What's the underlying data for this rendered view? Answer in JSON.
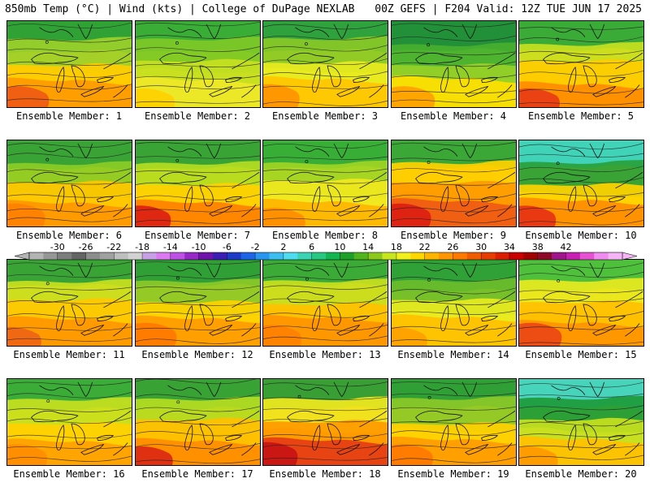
{
  "header": {
    "left": "850mb Temp (°C) | Wind (kts) | College of DuPage NEXLAB",
    "right": "00Z GEFS | F204 Valid: 12Z TUE JUN 17 2025"
  },
  "label_prefix": "Ensemble Member: ",
  "colorbar": {
    "ticks": [
      "-30",
      "-26",
      "-22",
      "-18",
      "-14",
      "-10",
      "-6",
      "-2",
      "2",
      "6",
      "10",
      "14",
      "18",
      "22",
      "26",
      "30",
      "34",
      "38",
      "42"
    ],
    "colors": [
      "#b4b4b4",
      "#969696",
      "#7d7d7d",
      "#646464",
      "#8c8c8c",
      "#a0a0a0",
      "#bebebe",
      "#d2d2d2",
      "#c8a0e6",
      "#dc78f0",
      "#be50e6",
      "#9628c8",
      "#6e14aa",
      "#3c1eb4",
      "#1e3cc8",
      "#1e64e6",
      "#2896f0",
      "#3cbef0",
      "#50dcf0",
      "#3cd2b4",
      "#28c882",
      "#14b450",
      "#1ea028",
      "#50b41e",
      "#8cc81e",
      "#c8e61e",
      "#f0f01e",
      "#ffd700",
      "#ffb400",
      "#ff9600",
      "#ff7800",
      "#f05a00",
      "#e63c00",
      "#dc1e00",
      "#c80000",
      "#a00000",
      "#8c0a28",
      "#a0148c",
      "#c81eb4",
      "#e650d2",
      "#f08cf0",
      "#f5b4f5"
    ]
  },
  "members": [
    {
      "number": "1",
      "palette": [
        "#1e9e3a",
        "#9cd02a",
        "#ffcc00",
        "#ff9a00",
        "#f05a14"
      ]
    },
    {
      "number": "2",
      "palette": [
        "#2ea83a",
        "#7ec826",
        "#c8e020",
        "#f0e828",
        "#ffd000"
      ]
    },
    {
      "number": "3",
      "palette": [
        "#1e9a40",
        "#8ac826",
        "#e8ea20",
        "#ffc400",
        "#ff9200"
      ]
    },
    {
      "number": "4",
      "palette": [
        "#188a3a",
        "#48b030",
        "#98d028",
        "#ffe000",
        "#ffa000"
      ]
    },
    {
      "number": "5",
      "palette": [
        "#2aa83c",
        "#c8e020",
        "#ffcc00",
        "#ff8c00",
        "#e83c14"
      ]
    },
    {
      "number": "6",
      "palette": [
        "#28a03a",
        "#8ccc26",
        "#ffc800",
        "#ff9600",
        "#ff8000"
      ]
    },
    {
      "number": "7",
      "palette": [
        "#28a03a",
        "#b4dc22",
        "#ffd000",
        "#ff8000",
        "#dc1e14"
      ]
    },
    {
      "number": "8",
      "palette": [
        "#28a83a",
        "#a0d424",
        "#f0e820",
        "#ffb400",
        "#ff8c00"
      ]
    },
    {
      "number": "9",
      "palette": [
        "#2aa83c",
        "#ffd200",
        "#ff9a00",
        "#f05a14",
        "#dc1e14"
      ]
    },
    {
      "number": "10",
      "palette": [
        "#30d2c8",
        "#28a03a",
        "#ffd200",
        "#ff8c00",
        "#e63214"
      ]
    },
    {
      "number": "11",
      "palette": [
        "#28a03a",
        "#c8e020",
        "#ffc800",
        "#ff9600",
        "#f06414"
      ]
    },
    {
      "number": "12",
      "palette": [
        "#1e9a3a",
        "#8cc828",
        "#ffd200",
        "#ff9a00",
        "#ff7800"
      ]
    },
    {
      "number": "13",
      "palette": [
        "#2aa83c",
        "#c8e020",
        "#ffc000",
        "#ff9400",
        "#ff8000"
      ]
    },
    {
      "number": "14",
      "palette": [
        "#1e9a3a",
        "#6cbc2a",
        "#e8ea20",
        "#ffc000",
        "#ffa000"
      ]
    },
    {
      "number": "15",
      "palette": [
        "#40c040",
        "#e8ea20",
        "#ffc000",
        "#ff9400",
        "#ec4614"
      ]
    },
    {
      "number": "16",
      "palette": [
        "#2aa83c",
        "#c8e020",
        "#ffd000",
        "#ffa000",
        "#ff8c00"
      ]
    },
    {
      "number": "17",
      "palette": [
        "#28a03a",
        "#b4dc22",
        "#ffc000",
        "#ff8c00",
        "#dc2814"
      ]
    },
    {
      "number": "18",
      "palette": [
        "#28a03a",
        "#f0e820",
        "#ff9a00",
        "#e63c14",
        "#c81414"
      ]
    },
    {
      "number": "19",
      "palette": [
        "#1e9a3a",
        "#8cc828",
        "#ffd000",
        "#ff9a00",
        "#ff7800"
      ]
    },
    {
      "number": "20",
      "palette": [
        "#3cd2c8",
        "#1e9a3a",
        "#c8e020",
        "#ffc000",
        "#ff9a00"
      ]
    }
  ]
}
